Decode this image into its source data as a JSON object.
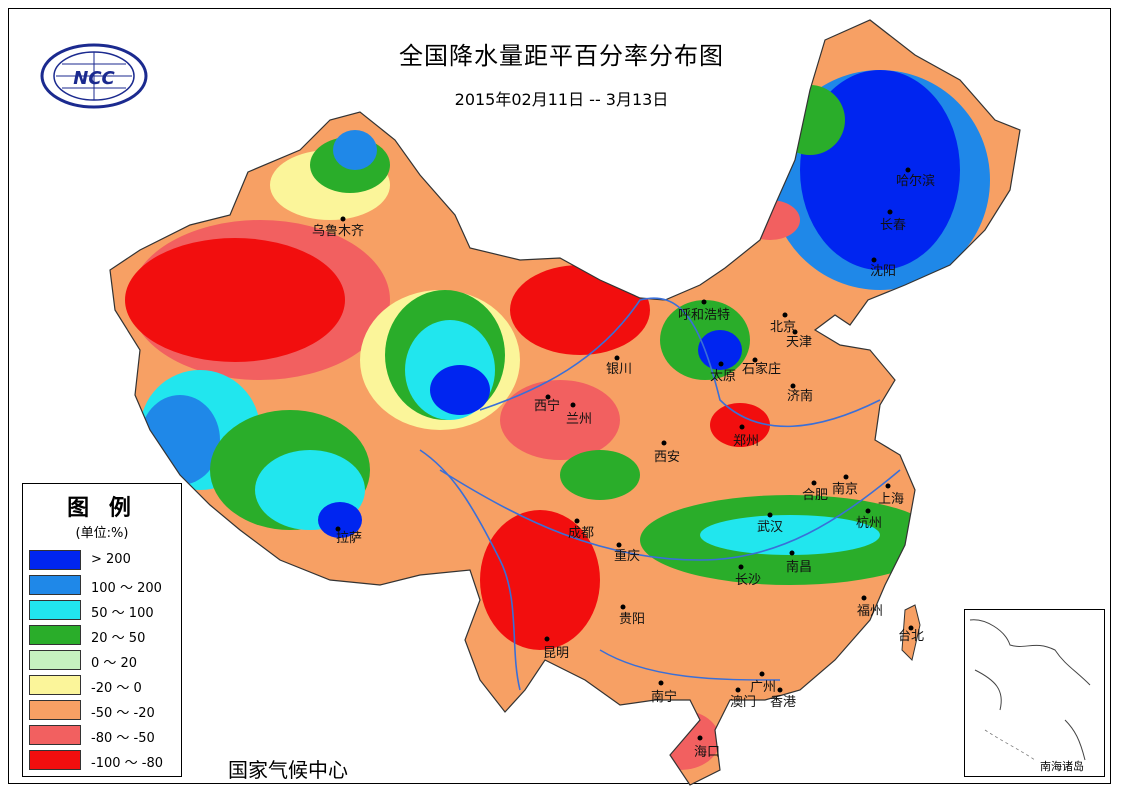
{
  "title": "全国降水量距平百分率分布图",
  "subtitle": "2015年02月11日 -- 3月13日",
  "logo": {
    "text": "NCC",
    "name": "ncc-logo"
  },
  "credit": "国家气候中心",
  "legend": {
    "title": "图 例",
    "unit": "(单位:%)",
    "items": [
      {
        "label": "> 200",
        "color": "#0025f0"
      },
      {
        "label": "100 ～ 200",
        "color": "#1f88e8"
      },
      {
        "label": "50 ～ 100",
        "color": "#21e6ee"
      },
      {
        "label": "20 ～ 50",
        "color": "#2aad2a"
      },
      {
        "label": "0 ～ 20",
        "color": "#c7f2c0"
      },
      {
        "label": "-20 ～ 0",
        "color": "#fbf59a"
      },
      {
        "label": "-50 ～ -20",
        "color": "#f7a064"
      },
      {
        "label": "-80 ～ -50",
        "color": "#f26060"
      },
      {
        "label": "-100 ～ -80",
        "color": "#f20e0e"
      }
    ]
  },
  "cities": [
    {
      "name": "乌鲁木齐"
    },
    {
      "name": "拉萨"
    },
    {
      "name": "西宁"
    },
    {
      "name": "兰州"
    },
    {
      "name": "银川"
    },
    {
      "name": "呼和浩特"
    },
    {
      "name": "北京"
    },
    {
      "name": "天津"
    },
    {
      "name": "石家庄"
    },
    {
      "name": "太原"
    },
    {
      "name": "济南"
    },
    {
      "name": "郑州"
    },
    {
      "name": "西安"
    },
    {
      "name": "成都"
    },
    {
      "name": "重庆"
    },
    {
      "name": "贵阳"
    },
    {
      "name": "昆明"
    },
    {
      "name": "南宁"
    },
    {
      "name": "广州"
    },
    {
      "name": "澳门"
    },
    {
      "name": "香港"
    },
    {
      "name": "海口"
    },
    {
      "name": "长沙"
    },
    {
      "name": "武汉"
    },
    {
      "name": "南昌"
    },
    {
      "name": "福州"
    },
    {
      "name": "台北"
    },
    {
      "name": "杭州"
    },
    {
      "name": "上海"
    },
    {
      "name": "南京"
    },
    {
      "name": "合肥"
    },
    {
      "name": "沈阳"
    },
    {
      "name": "长春"
    },
    {
      "name": "哈尔滨"
    }
  ],
  "inset": {
    "label": "南海诸岛"
  }
}
